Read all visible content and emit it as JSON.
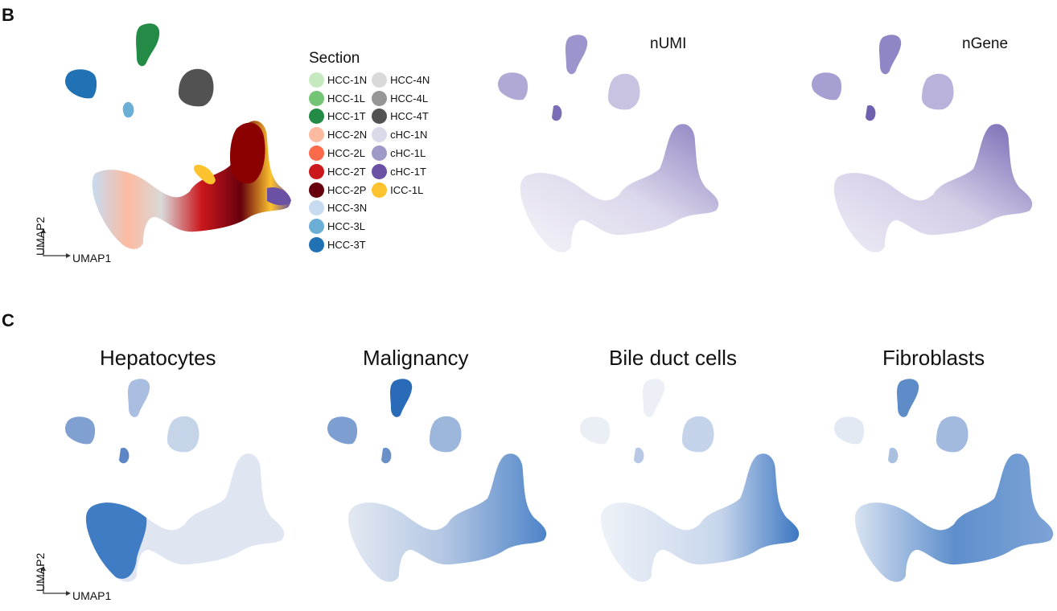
{
  "figure": {
    "panel_b_label": "B",
    "panel_c_label": "C"
  },
  "panel_b": {
    "section_legend": {
      "title": "Section",
      "col1": [
        {
          "label": "HCC-1N",
          "color": "#c7e9c0"
        },
        {
          "label": "HCC-1L",
          "color": "#74c476"
        },
        {
          "label": "HCC-1T",
          "color": "#238b45"
        },
        {
          "label": "HCC-2N",
          "color": "#fcbba1"
        },
        {
          "label": "HCC-2L",
          "color": "#fb6a4a"
        },
        {
          "label": "HCC-2T",
          "color": "#cb181d"
        },
        {
          "label": "HCC-2P",
          "color": "#67000d"
        },
        {
          "label": "HCC-3N",
          "color": "#c6dbef"
        },
        {
          "label": "HCC-3L",
          "color": "#6baed6"
        },
        {
          "label": "HCC-3T",
          "color": "#2171b5"
        }
      ],
      "col2": [
        {
          "label": "HCC-4N",
          "color": "#d9d9d9"
        },
        {
          "label": "HCC-4L",
          "color": "#969696"
        },
        {
          "label": "HCC-4T",
          "color": "#525252"
        },
        {
          "label": "cHC-1N",
          "color": "#dadaeb"
        },
        {
          "label": "cHC-1L",
          "color": "#9e9ac8"
        },
        {
          "label": "cHC-1T",
          "color": "#6a51a3"
        },
        {
          "label": "ICC-1L",
          "color": "#fdc32e"
        }
      ]
    },
    "numi_title": "nUMI",
    "ngene_title": "nGene",
    "colors": {
      "purple_low": "#efedf5",
      "purple_high": "#6a51a3"
    }
  },
  "panel_c": {
    "titles": [
      "Hepatocytes",
      "Malignancy",
      "Bile duct cells",
      "Fibroblasts"
    ],
    "colors": {
      "blue_low": "#e8eef6",
      "blue_high": "#2b6cb0"
    }
  },
  "axes": {
    "x": "UMAP1",
    "y": "UMAP2"
  }
}
